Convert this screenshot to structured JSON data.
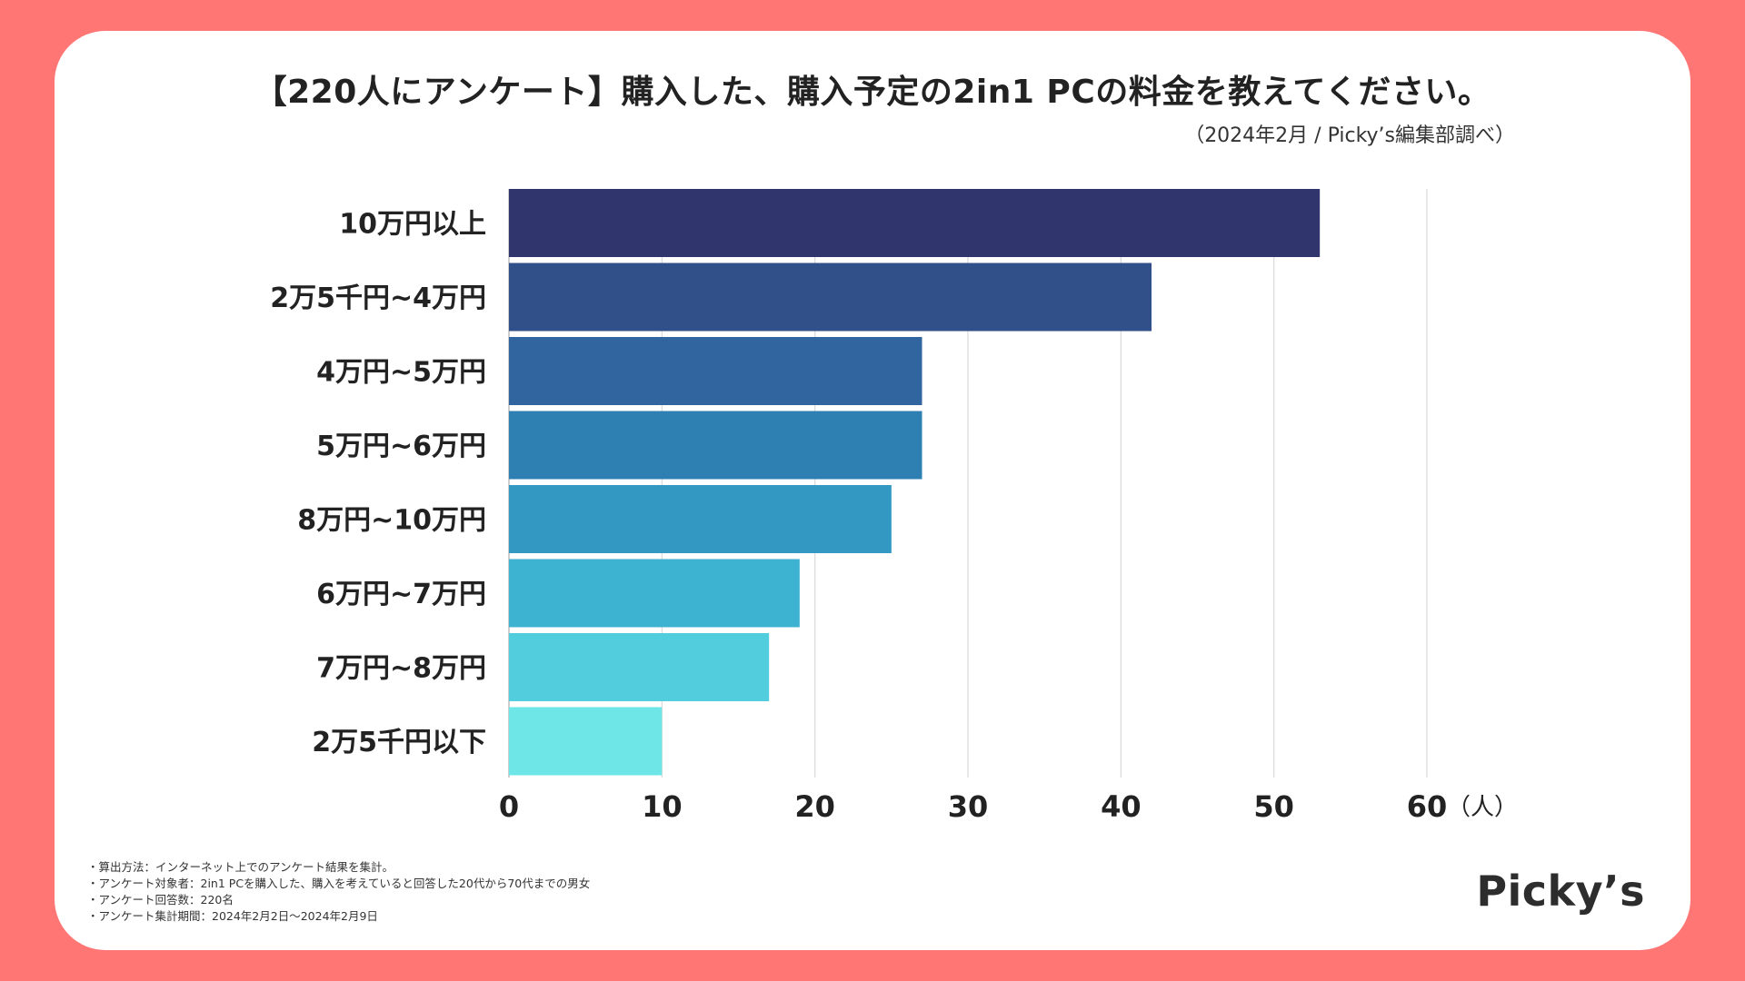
{
  "title": "【220人にアンケート】購入した、購入予定の2in1 PCの料金を教えてください。",
  "subtitle": "（2024年2月 / Picky’s編集部調べ）",
  "chart_data": {
    "type": "bar",
    "orientation": "horizontal",
    "title": "【220人にアンケート】購入した、購入予定の2in1 PCの料金を教えてください。",
    "categories": [
      "10万円以上",
      "2万5千円~4万円",
      "4万円~5万円",
      "5万円~6万円",
      "8万円~10万円",
      "6万円~7万円",
      "7万円~8万円",
      "2万5千円以下"
    ],
    "values": [
      53,
      42,
      27,
      27,
      25,
      19,
      17,
      10
    ],
    "colors": [
      "#31356e",
      "#314f89",
      "#30659f",
      "#2e80b3",
      "#3399c3",
      "#3db2d1",
      "#52cddd",
      "#6ee6e8"
    ],
    "xlim": [
      0,
      60
    ],
    "xticks": [
      "0",
      "10",
      "20",
      "30",
      "40",
      "50",
      "60"
    ],
    "xlabel": "（人）",
    "grid": true
  },
  "notes": [
    "・算出方法：インターネット上でのアンケート結果を集計。",
    "・アンケート対象者：2in1 PCを購入した、購入を考えていると回答した20代から70代までの男女",
    "・アンケート回答数：220名",
    "・アンケート集計期間：2024年2月2日〜2024年2月9日"
  ],
  "logo": "Picky’s"
}
